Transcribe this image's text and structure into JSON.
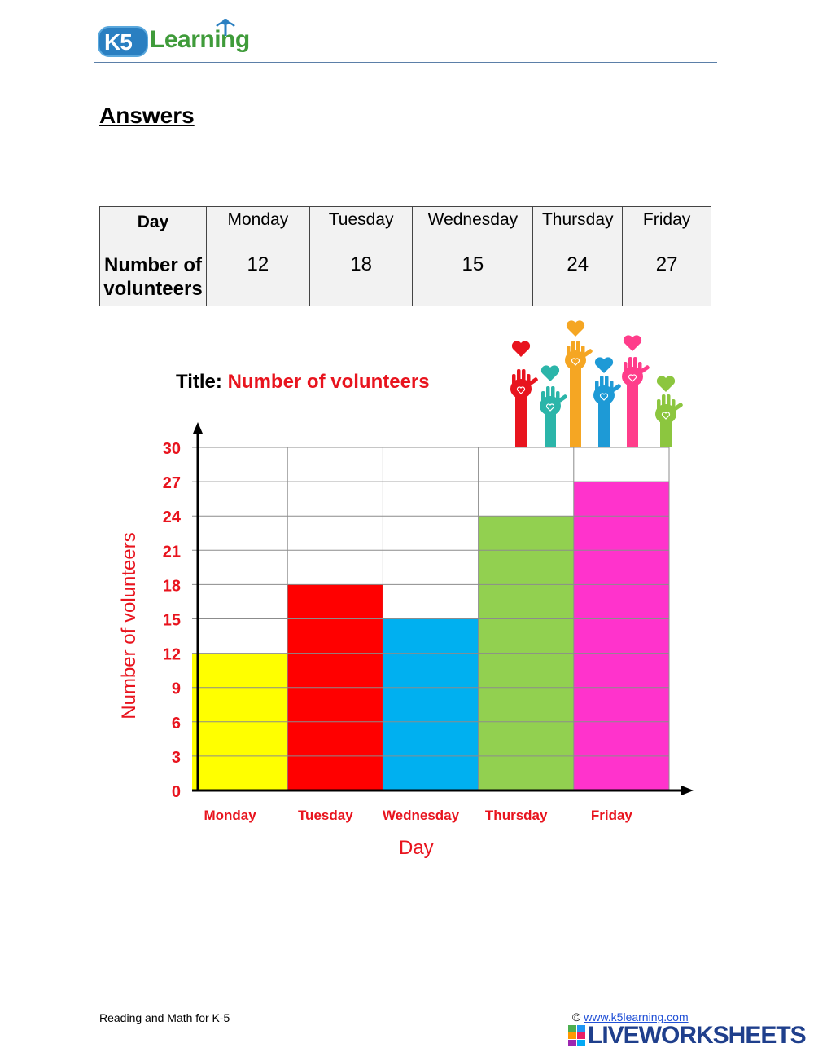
{
  "header": {
    "logo_k5": "K5",
    "logo_word": "Learning"
  },
  "heading": "Answers",
  "table": {
    "row1_header": "Day",
    "row2_header": "Number of volunteers",
    "days": [
      "Monday",
      "Tuesday",
      "Wednesday",
      "Thursday",
      "Friday"
    ],
    "counts": [
      "12",
      "18",
      "15",
      "24",
      "27"
    ]
  },
  "chart_data": {
    "type": "bar",
    "title_prefix": "Title:",
    "title": "Number of volunteers",
    "categories": [
      "Monday",
      "Tuesday",
      "Wednesday",
      "Thursday",
      "Friday"
    ],
    "values": [
      12,
      18,
      15,
      24,
      27
    ],
    "bar_colors": [
      "#ffff00",
      "#ff0000",
      "#00b0f0",
      "#92d050",
      "#ff33cc"
    ],
    "xlabel": "Day",
    "ylabel": "Number of volunteers",
    "yticks": [
      0,
      3,
      6,
      9,
      12,
      15,
      18,
      21,
      24,
      27,
      30
    ],
    "ylim": [
      0,
      30
    ],
    "grid": true,
    "label_color": "#e8141e",
    "decoration": "raised-hands-with-hearts"
  },
  "footer": {
    "left": "Reading and Math for K-5",
    "copyright_symbol": "©",
    "link": "www.k5learning.com",
    "brand": "LIVEWORKSHEETS"
  }
}
